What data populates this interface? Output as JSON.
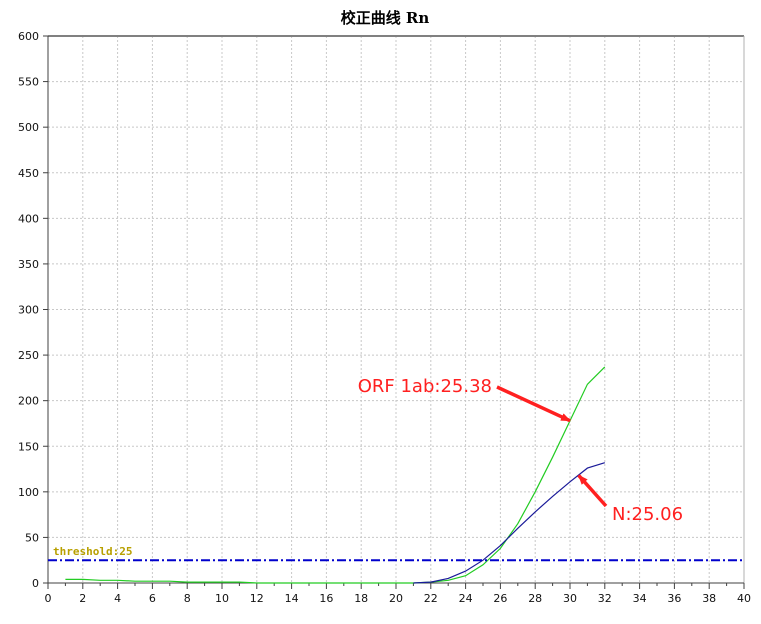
{
  "chart_data": {
    "type": "line",
    "title": "校正曲线 Rn",
    "xlabel": "",
    "ylabel": "",
    "xlim": [
      0,
      40
    ],
    "ylim": [
      0,
      600
    ],
    "x_ticks": [
      0,
      2,
      4,
      6,
      8,
      10,
      12,
      14,
      16,
      18,
      20,
      22,
      24,
      26,
      28,
      30,
      32,
      34,
      36,
      38,
      40
    ],
    "y_ticks": [
      0,
      50,
      100,
      150,
      200,
      250,
      300,
      350,
      400,
      450,
      500,
      550,
      600
    ],
    "grid": true,
    "series": [
      {
        "key": "orf1ab",
        "color": "#22cc22",
        "x": [
          1,
          2,
          3,
          4,
          5,
          6,
          7,
          8,
          9,
          10,
          11,
          12,
          13,
          14,
          15,
          16,
          17,
          18,
          19,
          20,
          21,
          22,
          23,
          24,
          25,
          26,
          27,
          28,
          29,
          30,
          31,
          32
        ],
        "values": [
          4,
          4,
          3,
          3,
          2,
          2,
          2,
          1,
          1,
          1,
          1,
          0,
          0,
          0,
          0,
          0,
          0,
          0,
          0,
          0,
          0,
          1,
          3,
          8,
          20,
          38,
          65,
          100,
          138,
          178,
          218,
          237
        ]
      },
      {
        "key": "n",
        "color": "#1a1a99",
        "x": [
          21,
          22,
          23,
          24,
          25,
          26,
          27,
          28,
          29,
          30,
          31,
          32
        ],
        "values": [
          0,
          1,
          5,
          13,
          25,
          41,
          60,
          78,
          95,
          111,
          126,
          132
        ]
      }
    ],
    "threshold": {
      "label": "threshold:25",
      "value": 25,
      "color": "#0000cc",
      "label_color": "#b8a000"
    },
    "annotations": [
      {
        "key": "orf1ab",
        "text": "ORF 1ab:25.38",
        "color": "#ff2020",
        "target_x": 30,
        "target_y": 178
      },
      {
        "key": "n",
        "text": "N:25.06",
        "color": "#ff2020",
        "target_x": 30.5,
        "target_y": 118
      }
    ]
  }
}
